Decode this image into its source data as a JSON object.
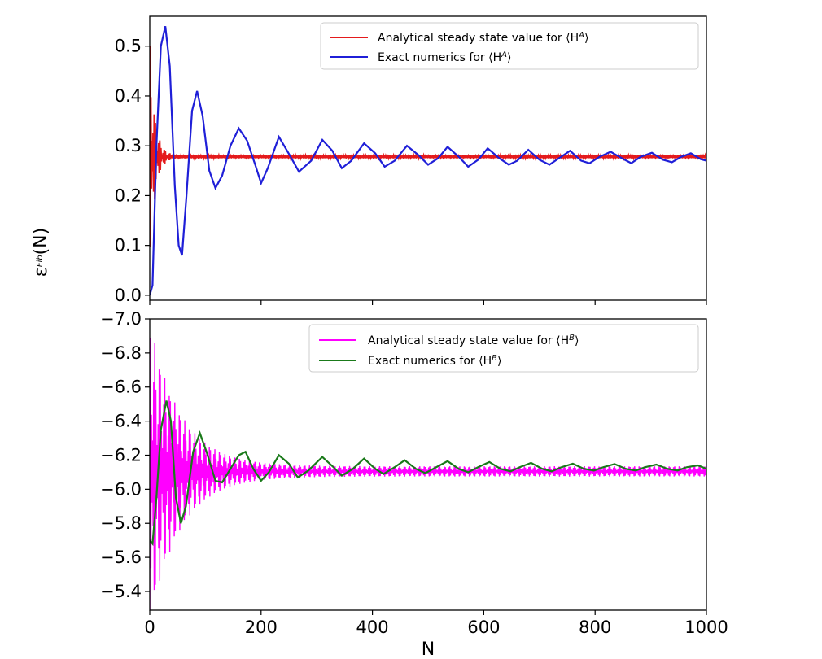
{
  "chart_data": [
    {
      "type": "line",
      "panel": "top",
      "title": "",
      "xlabel": "",
      "ylabel": "ε^Fib(N)",
      "xlim": [
        0,
        1000
      ],
      "ylim": [
        -0.01,
        0.56
      ],
      "y_ticks": [
        "0.0",
        "0.1",
        "0.2",
        "0.3",
        "0.4",
        "0.5"
      ],
      "y_tick_values": [
        0.0,
        0.1,
        0.2,
        0.3,
        0.4,
        0.5
      ],
      "legend_position": "top-right",
      "series": [
        {
          "name": "Analytical steady state value for ⟨H^A⟩",
          "color": "#e41a1c",
          "style": "fast-oscillation",
          "steady_value": 0.278,
          "initial_amplitude": 0.22,
          "decay_N": 9
        },
        {
          "name": "Exact numerics for ⟨H^A⟩",
          "color": "#1f1fd8",
          "style": "damped-oscillation",
          "points": [
            [
              0,
              0.0
            ],
            [
              5,
              0.02
            ],
            [
              12,
              0.3
            ],
            [
              20,
              0.5
            ],
            [
              28,
              0.54
            ],
            [
              36,
              0.46
            ],
            [
              45,
              0.22
            ],
            [
              52,
              0.1
            ],
            [
              58,
              0.08
            ],
            [
              66,
              0.2
            ],
            [
              76,
              0.37
            ],
            [
              85,
              0.41
            ],
            [
              95,
              0.36
            ],
            [
              107,
              0.25
            ],
            [
              118,
              0.215
            ],
            [
              130,
              0.24
            ],
            [
              145,
              0.3
            ],
            [
              160,
              0.335
            ],
            [
              175,
              0.31
            ],
            [
              190,
              0.26
            ],
            [
              200,
              0.225
            ],
            [
              212,
              0.255
            ],
            [
              232,
              0.318
            ],
            [
              252,
              0.28
            ],
            [
              268,
              0.248
            ],
            [
              290,
              0.27
            ],
            [
              310,
              0.312
            ],
            [
              328,
              0.29
            ],
            [
              345,
              0.255
            ],
            [
              362,
              0.27
            ],
            [
              385,
              0.305
            ],
            [
              405,
              0.285
            ],
            [
              422,
              0.258
            ],
            [
              440,
              0.27
            ],
            [
              462,
              0.3
            ],
            [
              482,
              0.282
            ],
            [
              500,
              0.262
            ],
            [
              518,
              0.275
            ],
            [
              535,
              0.298
            ],
            [
              555,
              0.278
            ],
            [
              572,
              0.258
            ],
            [
              590,
              0.272
            ],
            [
              607,
              0.295
            ],
            [
              628,
              0.275
            ],
            [
              645,
              0.262
            ],
            [
              660,
              0.27
            ],
            [
              680,
              0.292
            ],
            [
              700,
              0.272
            ],
            [
              718,
              0.262
            ],
            [
              735,
              0.275
            ],
            [
              755,
              0.29
            ],
            [
              775,
              0.27
            ],
            [
              790,
              0.265
            ],
            [
              808,
              0.278
            ],
            [
              828,
              0.288
            ],
            [
              848,
              0.275
            ],
            [
              865,
              0.265
            ],
            [
              882,
              0.278
            ],
            [
              902,
              0.286
            ],
            [
              922,
              0.272
            ],
            [
              938,
              0.267
            ],
            [
              955,
              0.278
            ],
            [
              972,
              0.285
            ],
            [
              990,
              0.273
            ],
            [
              1000,
              0.27
            ]
          ]
        }
      ]
    },
    {
      "type": "line",
      "panel": "bottom",
      "title": "",
      "xlabel": "N",
      "ylabel": "ε^Fib(N)",
      "xlim": [
        0,
        1000
      ],
      "ylim": [
        -5.29,
        -7.0
      ],
      "x_ticks": [
        "0",
        "200",
        "400",
        "600",
        "800",
        "1000"
      ],
      "x_tick_values": [
        0,
        200,
        400,
        600,
        800,
        1000
      ],
      "y_ticks": [
        "−7.0",
        "−6.8",
        "−6.6",
        "−6.4",
        "−6.2",
        "−6.0",
        "−5.8",
        "−5.6",
        "−5.4"
      ],
      "y_tick_values": [
        -7.0,
        -6.8,
        -6.6,
        -6.4,
        -6.2,
        -6.0,
        -5.8,
        -5.6,
        -5.4
      ],
      "legend_position": "top-right",
      "series": [
        {
          "name": "Analytical steady state value for ⟨H^B⟩",
          "color": "#ff00ff",
          "style": "fast-oscillation",
          "steady_value": -6.105,
          "initial_amplitude": 0.85,
          "decay_N": 55,
          "floor_amplitude": 0.03
        },
        {
          "name": "Exact numerics for ⟨H^B⟩",
          "color": "#1a7a1a",
          "style": "damped-oscillation",
          "points": [
            [
              0,
              -5.7
            ],
            [
              5,
              -5.68
            ],
            [
              12,
              -5.95
            ],
            [
              20,
              -6.35
            ],
            [
              30,
              -6.52
            ],
            [
              38,
              -6.4
            ],
            [
              47,
              -5.95
            ],
            [
              56,
              -5.8
            ],
            [
              65,
              -5.9
            ],
            [
              78,
              -6.22
            ],
            [
              90,
              -6.33
            ],
            [
              102,
              -6.22
            ],
            [
              118,
              -6.05
            ],
            [
              130,
              -6.04
            ],
            [
              145,
              -6.12
            ],
            [
              160,
              -6.2
            ],
            [
              172,
              -6.22
            ],
            [
              186,
              -6.12
            ],
            [
              200,
              -6.05
            ],
            [
              214,
              -6.1
            ],
            [
              232,
              -6.2
            ],
            [
              250,
              -6.15
            ],
            [
              266,
              -6.07
            ],
            [
              285,
              -6.11
            ],
            [
              310,
              -6.19
            ],
            [
              330,
              -6.13
            ],
            [
              345,
              -6.08
            ],
            [
              365,
              -6.12
            ],
            [
              385,
              -6.18
            ],
            [
              405,
              -6.12
            ],
            [
              420,
              -6.09
            ],
            [
              440,
              -6.13
            ],
            [
              458,
              -6.17
            ],
            [
              478,
              -6.12
            ],
            [
              495,
              -6.095
            ],
            [
              515,
              -6.13
            ],
            [
              535,
              -6.165
            ],
            [
              555,
              -6.12
            ],
            [
              572,
              -6.1
            ],
            [
              590,
              -6.13
            ],
            [
              610,
              -6.16
            ],
            [
              630,
              -6.12
            ],
            [
              648,
              -6.105
            ],
            [
              665,
              -6.13
            ],
            [
              685,
              -6.155
            ],
            [
              705,
              -6.12
            ],
            [
              722,
              -6.105
            ],
            [
              740,
              -6.13
            ],
            [
              760,
              -6.15
            ],
            [
              780,
              -6.12
            ],
            [
              798,
              -6.11
            ],
            [
              815,
              -6.13
            ],
            [
              835,
              -6.148
            ],
            [
              855,
              -6.12
            ],
            [
              873,
              -6.11
            ],
            [
              890,
              -6.13
            ],
            [
              910,
              -6.145
            ],
            [
              930,
              -6.12
            ],
            [
              948,
              -6.11
            ],
            [
              965,
              -6.13
            ],
            [
              985,
              -6.14
            ],
            [
              1000,
              -6.12
            ]
          ]
        }
      ]
    }
  ]
}
